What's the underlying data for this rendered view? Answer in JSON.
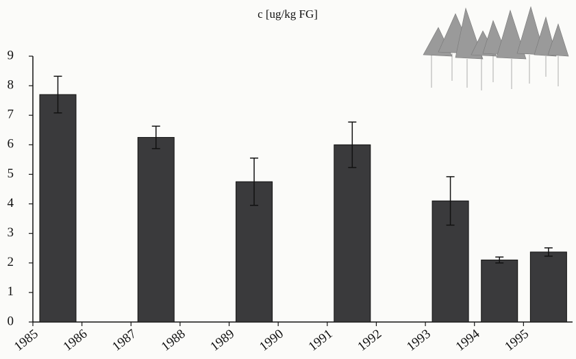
{
  "chart_data": {
    "type": "bar",
    "title": "c [ug/kg FG]",
    "categories": [
      "1985",
      "1986",
      "1987",
      "1988",
      "1989",
      "1990",
      "1991",
      "1992",
      "1993",
      "1994",
      "1995"
    ],
    "values": [
      7.7,
      null,
      6.25,
      null,
      4.75,
      null,
      6.0,
      null,
      4.1,
      2.1,
      2.37
    ],
    "errors": [
      0.62,
      null,
      0.38,
      null,
      0.8,
      null,
      0.77,
      null,
      0.82,
      0.1,
      0.14
    ],
    "color": "#3a3a3c",
    "ylim": [
      0,
      9
    ],
    "yticks": [
      0,
      1,
      2,
      3,
      4,
      5,
      6,
      7,
      8,
      9
    ],
    "grid": false
  }
}
